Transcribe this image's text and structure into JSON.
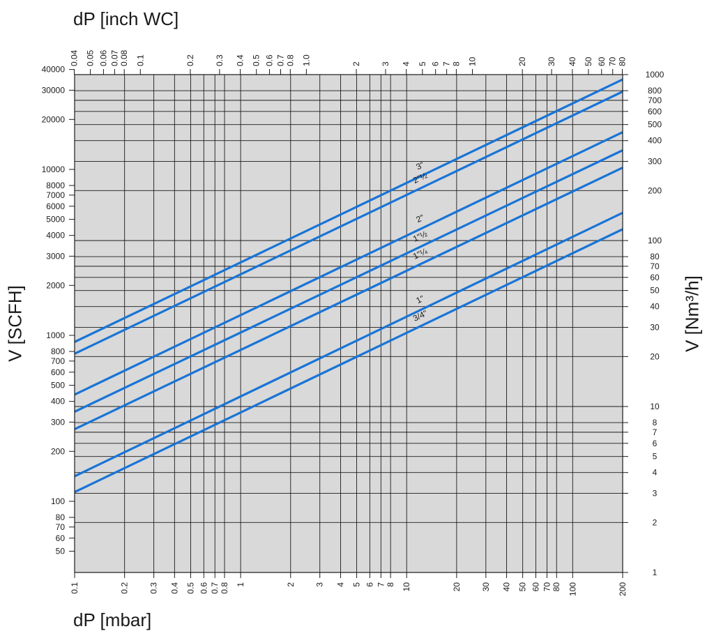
{
  "chart_data": {
    "type": "line",
    "xscale": "log",
    "yscale": "log",
    "x_bottom": {
      "label": "dP [mbar]",
      "range": [
        0.1,
        200
      ],
      "ticks": [
        0.1,
        0.2,
        0.3,
        0.4,
        0.5,
        0.6,
        0.7,
        0.8,
        1,
        2,
        3,
        4,
        5,
        6,
        7,
        8,
        10,
        20,
        30,
        40,
        50,
        60,
        70,
        80,
        100,
        200
      ],
      "tick_labels": [
        "0.1",
        "0.2",
        "0.3",
        "0.4",
        "0.5",
        "0.6",
        "0.7",
        "0.8",
        "1",
        "2",
        "3",
        "4",
        "5",
        "6",
        "7",
        "8",
        "10",
        "20",
        "30",
        "40",
        "50",
        "60",
        "70",
        "80",
        "100",
        "200"
      ]
    },
    "x_top": {
      "label": "dP [inch WC]",
      "ticks": [
        0.04,
        0.05,
        0.06,
        0.07,
        0.08,
        0.1,
        0.2,
        0.3,
        0.4,
        0.5,
        0.6,
        0.7,
        0.8,
        1.0,
        2,
        3,
        4,
        5,
        6,
        7,
        8,
        10,
        20,
        30,
        40,
        50,
        60,
        70,
        80
      ],
      "tick_labels": [
        "0.04",
        "0.05",
        "0.06",
        "0.07",
        "0.08",
        "0.1",
        "0.2",
        "0.3",
        "0.4",
        "0.5",
        "0.6",
        "0.7",
        "0.8",
        "1.0",
        "2",
        "3",
        "4",
        "5",
        "6",
        "7",
        "8",
        "10",
        "20",
        "30",
        "40",
        "50",
        "60",
        "70",
        "80"
      ]
    },
    "y_left": {
      "label": "V [SCFH]",
      "ticks": [
        50,
        60,
        70,
        80,
        100,
        200,
        300,
        400,
        500,
        600,
        700,
        800,
        1000,
        2000,
        3000,
        4000,
        5000,
        6000,
        7000,
        8000,
        10000,
        20000,
        30000,
        40000
      ],
      "tick_labels": [
        "50",
        "60",
        "70",
        "80",
        "100",
        "200",
        "300",
        "400",
        "500",
        "600",
        "700",
        "800",
        "1000",
        "2000",
        "3000",
        "4000",
        "5000",
        "6000",
        "7000",
        "8000",
        "10000",
        "20000",
        "30000",
        "40000"
      ]
    },
    "y_right": {
      "label": "V [Nm³/h]",
      "range": [
        1,
        1000
      ],
      "ticks": [
        1,
        2,
        3,
        4,
        5,
        6,
        7,
        8,
        10,
        20,
        30,
        40,
        50,
        60,
        70,
        80,
        100,
        200,
        300,
        400,
        500,
        600,
        700,
        800,
        1000
      ],
      "tick_labels": [
        "1",
        "2",
        "3",
        "4",
        "5",
        "6",
        "7",
        "8",
        "10",
        "20",
        "30",
        "40",
        "50",
        "60",
        "70",
        "80",
        "100",
        "200",
        "300",
        "400",
        "500",
        "600",
        "700",
        "800",
        "1000"
      ]
    },
    "grid": true,
    "colors": {
      "plot_background": "#d9d9d9",
      "grid": "#1a1a1a",
      "series": "#1874d6"
    },
    "series": [
      {
        "name": "3\"",
        "x": [
          0.1,
          200
        ],
        "y": [
          24.5,
          935
        ]
      },
      {
        "name": "2\"½",
        "x": [
          0.1,
          200
        ],
        "y": [
          20.8,
          790
        ]
      },
      {
        "name": "2\"",
        "x": [
          0.1,
          200
        ],
        "y": [
          11.8,
          450
        ]
      },
      {
        "name": "1\"½",
        "x": [
          0.1,
          200
        ],
        "y": [
          9.3,
          350
        ]
      },
      {
        "name": "1\"¼",
        "x": [
          0.1,
          200
        ],
        "y": [
          7.3,
          275
        ]
      },
      {
        "name": "1\"",
        "x": [
          0.1,
          200
        ],
        "y": [
          3.8,
          147
        ]
      },
      {
        "name": "3/4\"",
        "x": [
          0.1,
          200
        ],
        "y": [
          3.05,
          117
        ]
      }
    ],
    "series_labels": [
      {
        "text": "3\"",
        "at_x": 13.5
      },
      {
        "text": "2\"½",
        "at_x": 13.5
      },
      {
        "text": "2\"",
        "at_x": 13.5
      },
      {
        "text": "1\"½",
        "at_x": 13.5
      },
      {
        "text": "1\"¼",
        "at_x": 13.5
      },
      {
        "text": "1\"",
        "at_x": 13.5
      },
      {
        "text": "3/4\"",
        "at_x": 13.5
      }
    ]
  }
}
